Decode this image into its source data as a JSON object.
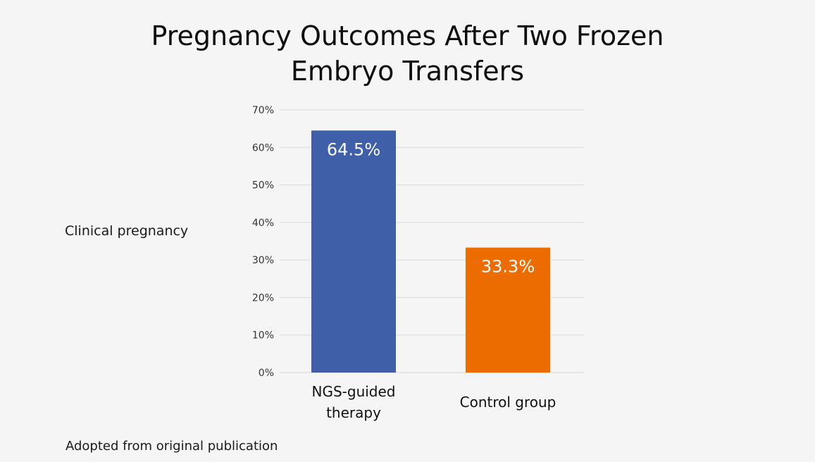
{
  "footnote": "Adopted from original publication",
  "chart_data": {
    "type": "bar",
    "title_lines": [
      "Pregnancy Outcomes After Two Frozen",
      "Embryo Transfers"
    ],
    "ylabel": "Clinical pregnancy",
    "xlabel": "",
    "ylim": [
      0,
      70
    ],
    "yticks": [
      0,
      10,
      20,
      30,
      40,
      50,
      60,
      70
    ],
    "ytick_suffix": "%",
    "grid": true,
    "categories": [
      [
        "NGS-guided",
        "therapy"
      ],
      [
        "Control group"
      ]
    ],
    "values": [
      64.5,
      33.3
    ],
    "data_labels": [
      "64.5%",
      "33.3%"
    ],
    "colors": [
      "#3f5fa8",
      "#ec6c00"
    ]
  }
}
